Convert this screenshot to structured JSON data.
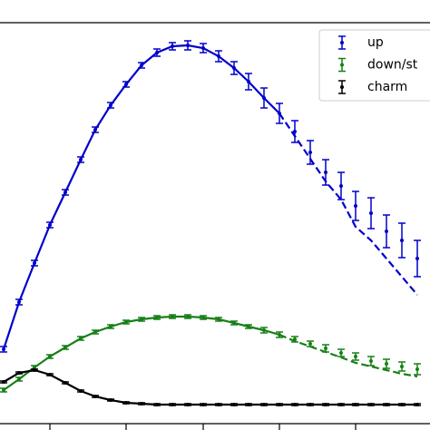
{
  "chart_data": {
    "type": "errorbar",
    "x": [
      4,
      21,
      38,
      55,
      72,
      89,
      105,
      122,
      139,
      156,
      173,
      190,
      207,
      224,
      241,
      258,
      274,
      291,
      308,
      325,
      342,
      359,
      376,
      392,
      409,
      426,
      443,
      460
    ],
    "xlim": [
      0,
      474
    ],
    "ylim": [
      0,
      442
    ],
    "xticks": [
      55,
      139,
      224,
      308,
      392
    ],
    "legend": "upper right",
    "series": [
      {
        "name": "up",
        "color": "#0000cc",
        "values": [
          82,
          134,
          177,
          219,
          255,
          291,
          324,
          351,
          374,
          395,
          409,
          416,
          417,
          414,
          405,
          392,
          377,
          359,
          342,
          322,
          299,
          277,
          262,
          240,
          232,
          212,
          202,
          182
        ],
        "errors": [
          3,
          3,
          3,
          3,
          3,
          3,
          3,
          3,
          3,
          3,
          4,
          4,
          5,
          5,
          6,
          7,
          9,
          11,
          11,
          12,
          13,
          14,
          15,
          16,
          17,
          18,
          19,
          20
        ],
        "fit": [
          82,
          134,
          177,
          219,
          255,
          291,
          324,
          351,
          374,
          395,
          409,
          416,
          417,
          414,
          405,
          392,
          377,
          359,
          342,
          null,
          null,
          null,
          null,
          null,
          null,
          null,
          null,
          null
        ],
        "extrapolation": [
          null,
          null,
          null,
          null,
          null,
          null,
          null,
          null,
          null,
          null,
          null,
          null,
          null,
          null,
          null,
          null,
          null,
          null,
          342,
          317,
          292,
          267,
          247,
          217,
          202,
          182,
          162,
          142
        ]
      },
      {
        "name": "down/st",
        "color": "#178017",
        "values": [
          37,
          49,
          62,
          74,
          84,
          94,
          101,
          107,
          112,
          115,
          117,
          118,
          118,
          117,
          115,
          111,
          107,
          103,
          98,
          93,
          88,
          83,
          78,
          74,
          69,
          66,
          63,
          60
        ],
        "errors": [
          2,
          2,
          2,
          2,
          2,
          2,
          2,
          2,
          2,
          2,
          2,
          2,
          2,
          2,
          2,
          2,
          2,
          3,
          3,
          3,
          3,
          4,
          4,
          4,
          5,
          5,
          5,
          6
        ],
        "fit": [
          37,
          49,
          62,
          74,
          84,
          94,
          101,
          107,
          112,
          115,
          117,
          118,
          118,
          117,
          115,
          111,
          107,
          103,
          98,
          null,
          null,
          null,
          null,
          null,
          null,
          null,
          null,
          null
        ],
        "extrapolation": [
          null,
          null,
          null,
          null,
          null,
          null,
          null,
          null,
          null,
          null,
          null,
          null,
          null,
          null,
          null,
          null,
          null,
          null,
          98,
          91,
          85,
          79,
          73,
          67,
          63,
          59,
          55,
          52
        ]
      },
      {
        "name": "charm",
        "color": "#000000",
        "values": [
          46,
          56,
          59,
          54,
          45,
          36,
          30,
          26,
          23,
          22,
          21,
          21,
          21,
          21,
          21,
          21,
          21,
          21,
          21,
          21,
          21,
          21,
          21,
          21,
          21,
          21,
          21,
          21
        ],
        "errors": [
          1,
          1,
          1,
          1,
          1,
          1,
          1,
          1,
          1,
          1,
          1,
          1,
          1,
          1,
          1,
          1,
          1,
          1,
          1,
          1,
          1,
          1,
          1,
          1,
          1,
          1,
          1,
          1
        ],
        "fit": [
          46,
          56,
          59,
          54,
          45,
          36,
          30,
          26,
          23,
          22,
          21,
          21,
          21,
          21,
          21,
          21,
          21,
          21,
          21,
          21,
          21,
          21,
          21,
          21,
          21,
          21,
          21,
          21
        ]
      }
    ]
  }
}
